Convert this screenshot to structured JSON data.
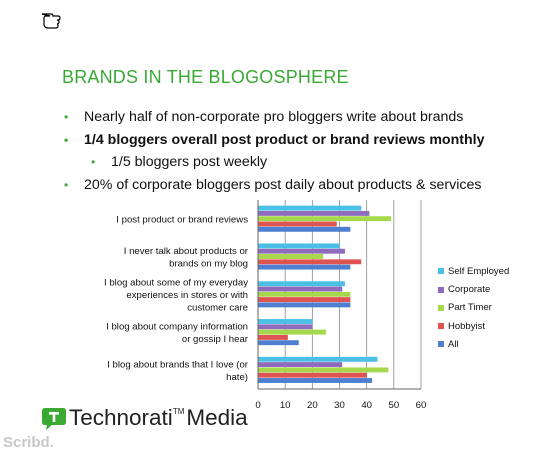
{
  "slide": {
    "title": "BRANDS IN THE BLOGOSPHERE",
    "bullets": [
      {
        "text": "Nearly half of non-corporate pro bloggers write about brands",
        "level": 1,
        "bold": false
      },
      {
        "text": "1/4 bloggers overall post product or brand reviews monthly",
        "level": 1,
        "bold": true
      },
      {
        "text": "1/5 bloggers post weekly",
        "level": 2,
        "bold": false
      },
      {
        "text": "20% of corporate bloggers post daily about products & services",
        "level": 1,
        "bold": false
      }
    ],
    "bullet_color": "#3aaa35"
  },
  "chart_data": {
    "type": "bar",
    "orientation": "horizontal",
    "categories": [
      "I post product or brand reviews",
      "I never talk about products or brands on my blog",
      "I blog about some of my everyday experiences in stores or with customer care",
      "I blog about company information or gossip I hear",
      "I blog about brands that I love (or hate)"
    ],
    "category_lines": [
      [
        "I post product or brand reviews"
      ],
      [
        "I never talk about products or",
        "brands on my blog"
      ],
      [
        "I blog about some of my everyday",
        "experiences in stores or with",
        "customer care"
      ],
      [
        "I blog about company information",
        "or gossip I hear"
      ],
      [
        "I blog about brands that I love (or",
        "hate)"
      ]
    ],
    "series": [
      {
        "name": "Self Employed",
        "color": "#4bc0e6",
        "values": [
          38,
          30,
          32,
          20,
          44
        ]
      },
      {
        "name": "Corporate",
        "color": "#8e6bbd",
        "values": [
          41,
          32,
          31,
          20,
          31
        ]
      },
      {
        "name": "Part Timer",
        "color": "#a5d84a",
        "values": [
          49,
          24,
          34,
          25,
          48
        ]
      },
      {
        "name": "Hobbyist",
        "color": "#e05353",
        "values": [
          29,
          38,
          34,
          11,
          40
        ]
      },
      {
        "name": "All",
        "color": "#4f7fd0",
        "values": [
          34,
          34,
          34,
          15,
          42
        ]
      }
    ],
    "legend_order": [
      "Self Employed",
      "Corporate",
      "Part Timer",
      "Hobbyist",
      "All"
    ],
    "xlim": [
      0,
      60
    ],
    "xticks": [
      0,
      10,
      20,
      30,
      40,
      50,
      60
    ],
    "grid": true,
    "legend_position": "right"
  },
  "branding": {
    "logo_name": "Technorati",
    "logo_suffix": "Media",
    "logo_tm": "TM",
    "logo_color": "#3aaa35",
    "watermark": "Scribd."
  }
}
